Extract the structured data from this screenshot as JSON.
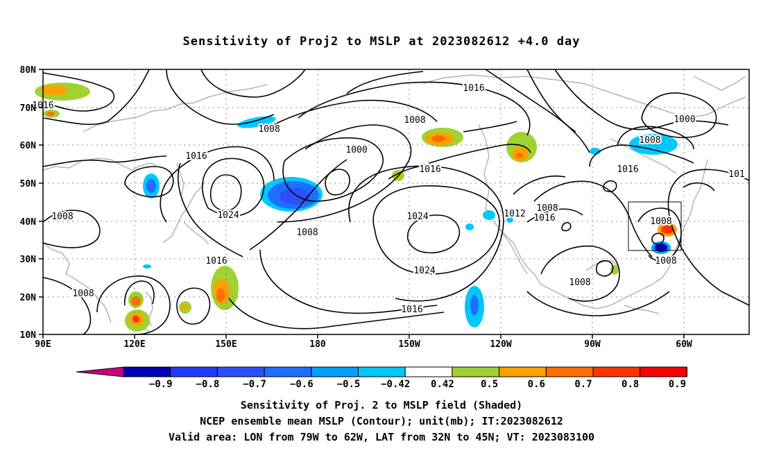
{
  "title": "Sensitivity of Proj2 to MSLP at 2023082612 +4.0 day",
  "lat_ticks": [
    "80N",
    "70N",
    "60N",
    "50N",
    "40N",
    "30N",
    "20N",
    "10N"
  ],
  "lon_ticks": [
    "90E",
    "120E",
    "150E",
    "180",
    "150W",
    "120W",
    "90W",
    "60W"
  ],
  "contour_labels": [
    "1016",
    "1016",
    "1008",
    "1016",
    "1008",
    "1000",
    "1016",
    "1008",
    "1008",
    "1000",
    "1016",
    "1016",
    "101",
    "1024",
    "1024",
    "1008",
    "1016",
    "1008",
    "1008",
    "1016",
    "1024",
    "1016",
    "1012",
    "1008",
    "1008",
    "1008"
  ],
  "colorbar": {
    "labels": [
      "-0.9",
      "-0.8",
      "-0.7",
      "-0.6",
      "-0.5",
      "-0.42",
      "0.42",
      "0.5",
      "0.6",
      "0.7",
      "0.8",
      "0.9"
    ],
    "colors": [
      "#0000b4",
      "#1e3cff",
      "#2d50ff",
      "#1e6eff",
      "#00a0ff",
      "#00c8ff",
      "#ffffff",
      "#a0d232",
      "#ffa000",
      "#ff6e00",
      "#ff3200",
      "#ff0000"
    ],
    "low_extend": "#c8007a",
    "high_extend": "#ffa0c8"
  },
  "captions": [
    "Sensitivity of Proj. 2 to MSLP field (Shaded)",
    "NCEP ensemble mean MSLP (Contour); unit(mb); IT:2023082612",
    "Valid area: LON from 79W to 62W, LAT from 32N to 45N; VT: 2023083100"
  ]
}
